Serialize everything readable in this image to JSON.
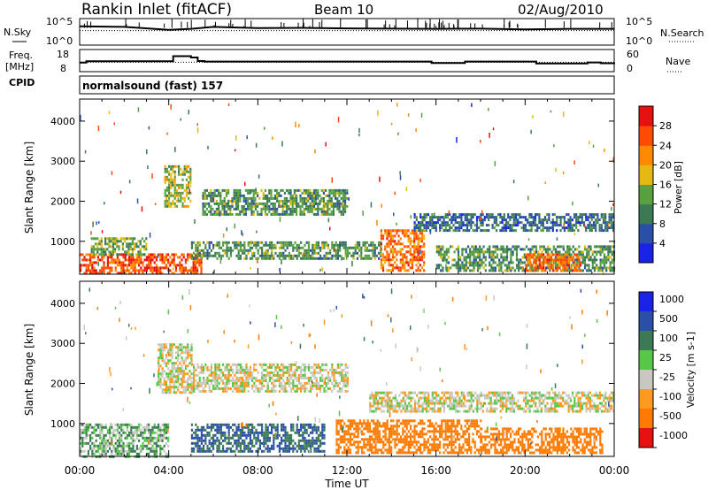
{
  "header": {
    "site": "Rankin Inlet (fitACF)",
    "beam": "Beam 10",
    "date": "02/Aug/2010"
  },
  "noise_panel": {
    "left_label": "N.Sky",
    "right_label": "N.Search",
    "left_ticks": [
      "10^5",
      "10^0"
    ],
    "right_ticks": [
      "10^5",
      "10^0"
    ]
  },
  "freq_panel": {
    "left_label_top": "Freq.",
    "left_label_bottom": "[MHz]",
    "right_label": "Nave",
    "left_ticks": [
      "18",
      "8"
    ],
    "right_ticks": [
      "60",
      "0"
    ]
  },
  "cpid": {
    "label": "CPID",
    "value": "normalsound (fast) 157"
  },
  "time_axis": {
    "label": "Time UT",
    "ticks": [
      "00:00",
      "04:00",
      "08:00",
      "12:00",
      "16:00",
      "20:00",
      "00:00"
    ]
  },
  "range_axis": {
    "label": "Slant Range [km]",
    "ticks": [
      "1000",
      "2000",
      "3000",
      "4000"
    ]
  },
  "power_colorbar": {
    "label": "Power [dB]",
    "ticks": [
      "4",
      "8",
      "12",
      "16",
      "20",
      "24",
      "28"
    ],
    "colors": [
      "#1a22e6",
      "#2b4fa8",
      "#3b7a55",
      "#58a040",
      "#e6b812",
      "#ff8a00",
      "#ff4a00",
      "#e61010"
    ]
  },
  "velocity_colorbar": {
    "label": "Velocity [m s-1]",
    "ticks": [
      "1000",
      "500",
      "100",
      "25",
      "-25",
      "-100",
      "-500",
      "-1000"
    ],
    "colors": [
      "#1a22e6",
      "#2b4fa8",
      "#3b7a55",
      "#56c846",
      "#c8c8c0",
      "#ff9a20",
      "#ff7a00",
      "#e61010"
    ]
  },
  "chart_data": [
    {
      "type": "line",
      "panel": "noise",
      "x_range_hours": [
        0,
        24
      ],
      "series": [
        {
          "name": "N.Sky",
          "style": "solid",
          "x_hours": [
            0,
            2,
            4,
            5,
            6,
            8,
            10,
            12,
            14,
            16,
            18,
            20,
            22,
            24
          ],
          "level_fraction": [
            0.72,
            0.7,
            0.58,
            0.62,
            0.7,
            0.65,
            0.66,
            0.64,
            0.63,
            0.62,
            0.63,
            0.6,
            0.62,
            0.62
          ]
        },
        {
          "name": "N.Search",
          "style": "dotted",
          "x_hours": [
            0,
            24
          ],
          "level_fraction": [
            0.55,
            0.55
          ]
        }
      ]
    },
    {
      "type": "line",
      "panel": "frequency",
      "x_range_hours": [
        0,
        24
      ],
      "y_range": [
        8,
        18
      ],
      "series": [
        {
          "name": "Freq",
          "style": "step",
          "x_hours": [
            0,
            0.3,
            4.2,
            5.0,
            5.3,
            5.6,
            14.2,
            15.8,
            17.3,
            20.5,
            22.8,
            23.4,
            24
          ],
          "y": [
            12,
            12.7,
            15.2,
            14.5,
            12.8,
            12.5,
            12.5,
            11.8,
            12.5,
            11.6,
            12.1,
            11.7,
            12
          ]
        },
        {
          "name": "Nave",
          "style": "dotted",
          "x_hours": [
            0,
            24
          ],
          "y_right": [
            25,
            25
          ]
        }
      ]
    },
    {
      "type": "heatmap",
      "panel": "power",
      "x_label": "Time UT",
      "y_label": "Slant Range [km]",
      "x_range_hours": [
        0,
        24
      ],
      "y_range_km": [
        180,
        4550
      ],
      "legend": "Power [dB]",
      "bands": [
        {
          "t_start": 0.0,
          "t_end": 5.5,
          "r_low": 200,
          "r_high": 700,
          "dB": 26
        },
        {
          "t_start": 0.5,
          "t_end": 3.0,
          "r_low": 700,
          "r_high": 1100,
          "dB": 14
        },
        {
          "t_start": 3.8,
          "t_end": 5.0,
          "r_low": 1900,
          "r_high": 2900,
          "dB": 16
        },
        {
          "t_start": 5.5,
          "t_end": 12.0,
          "r_low": 1700,
          "r_high": 2300,
          "dB": 12
        },
        {
          "t_start": 5.0,
          "t_end": 13.5,
          "r_low": 600,
          "r_high": 1000,
          "dB": 12
        },
        {
          "t_start": 13.5,
          "t_end": 15.5,
          "r_low": 300,
          "r_high": 1300,
          "dB": 24
        },
        {
          "t_start": 15.0,
          "t_end": 24.0,
          "r_low": 1300,
          "r_high": 1700,
          "dB": 8
        },
        {
          "t_start": 16.0,
          "t_end": 24.0,
          "r_low": 300,
          "r_high": 900,
          "dB": 12
        },
        {
          "t_start": 20.0,
          "t_end": 22.5,
          "r_low": 300,
          "r_high": 700,
          "dB": 24
        }
      ]
    },
    {
      "type": "heatmap",
      "panel": "velocity",
      "x_label": "Time UT",
      "y_label": "Slant Range [km]",
      "x_range_hours": [
        0,
        24
      ],
      "y_range_km": [
        180,
        4550
      ],
      "legend": "Velocity [m s-1]",
      "bands": [
        {
          "t_start": 0.0,
          "t_end": 4.0,
          "r_low": 200,
          "r_high": 1000,
          "v": 50
        },
        {
          "t_start": 3.5,
          "t_end": 5.0,
          "r_low": 1800,
          "r_high": 3000,
          "v": 0
        },
        {
          "t_start": 5.0,
          "t_end": 12.0,
          "r_low": 1800,
          "r_high": 2500,
          "v": 0
        },
        {
          "t_start": 5.0,
          "t_end": 11.0,
          "r_low": 300,
          "r_high": 1000,
          "v": 300
        },
        {
          "t_start": 11.5,
          "t_end": 18.0,
          "r_low": 300,
          "r_high": 1100,
          "v": -300
        },
        {
          "t_start": 13.0,
          "t_end": 24.0,
          "r_low": 1300,
          "r_high": 1800,
          "v": 0
        },
        {
          "t_start": 18.0,
          "t_end": 23.5,
          "r_low": 300,
          "r_high": 900,
          "v": -300
        }
      ]
    }
  ]
}
